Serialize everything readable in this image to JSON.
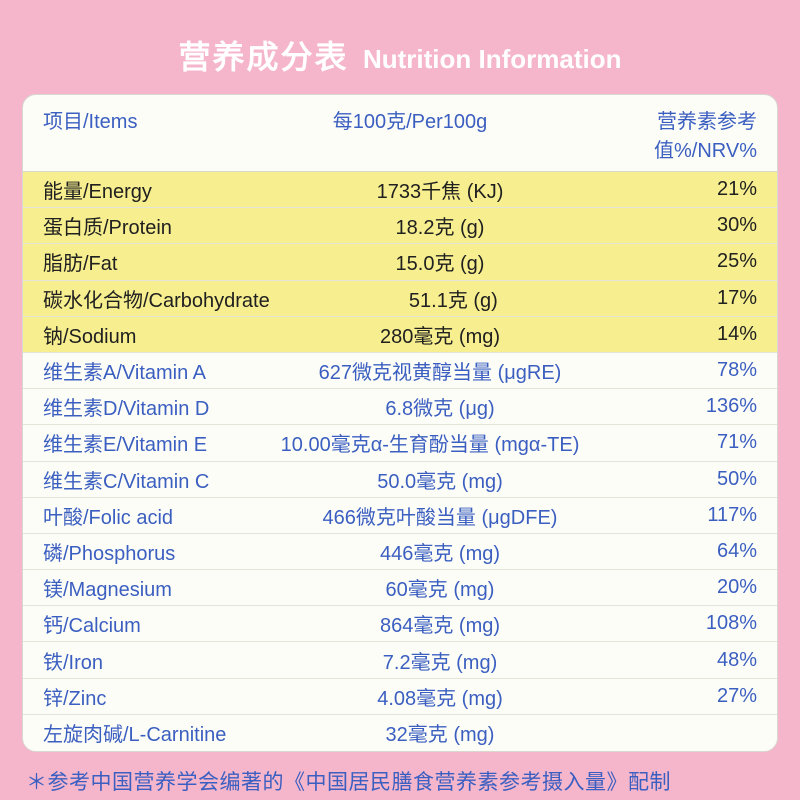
{
  "title": {
    "cn": "营养成分表",
    "en": "Nutrition Information"
  },
  "headers": {
    "item": "项目/Items",
    "per100g": "每100克/Per100g",
    "nrv": "营养素参考值%/NRV%"
  },
  "rows": [
    {
      "name": "能量/Energy",
      "value": "1733千焦 (KJ)",
      "nrv": "21%",
      "hl": true
    },
    {
      "name": "蛋白质/Protein",
      "value": "18.2克 (g)",
      "nrv": "30%",
      "hl": true
    },
    {
      "name": "脂肪/Fat",
      "value": "15.0克 (g)",
      "nrv": "25%",
      "hl": true
    },
    {
      "name": "碳水化合物/Carbohydrate",
      "value": "51.1克 (g)",
      "nrv": "17%",
      "hl": true
    },
    {
      "name": "钠/Sodium",
      "value": "280毫克 (mg)",
      "nrv": "14%",
      "hl": true
    },
    {
      "name": "维生素A/Vitamin A",
      "value": "627微克视黄醇当量 (μgRE)",
      "nrv": "78%",
      "hl": false
    },
    {
      "name": "维生素D/Vitamin D",
      "value": "6.8微克 (μg)",
      "nrv": "136%",
      "hl": false
    },
    {
      "name": "维生素E/Vitamin E",
      "value": "10.00毫克α-生育酚当量 (mgα-TE)",
      "nrv": "71%",
      "hl": false,
      "tight": true
    },
    {
      "name": "维生素C/Vitamin C",
      "value": "50.0毫克 (mg)",
      "nrv": "50%",
      "hl": false
    },
    {
      "name": "叶酸/Folic acid",
      "value": "466微克叶酸当量 (μgDFE)",
      "nrv": "117%",
      "hl": false
    },
    {
      "name": "磷/Phosphorus",
      "value": "446毫克 (mg)",
      "nrv": "64%",
      "hl": false
    },
    {
      "name": "镁/Magnesium",
      "value": "60毫克 (mg)",
      "nrv": "20%",
      "hl": false
    },
    {
      "name": "钙/Calcium",
      "value": "864毫克 (mg)",
      "nrv": "108%",
      "hl": false
    },
    {
      "name": "铁/Iron",
      "value": "7.2毫克 (mg)",
      "nrv": "48%",
      "hl": false
    },
    {
      "name": "锌/Zinc",
      "value": "4.08毫克 (mg)",
      "nrv": "27%",
      "hl": false
    },
    {
      "name": "左旋肉碱/L-Carnitine",
      "value": "32毫克 (mg)",
      "nrv": "",
      "hl": false
    }
  ],
  "footnote": "＊参考中国营养学会编著的《中国居民膳食营养素参考摄入量》配制",
  "colors": {
    "page_bg": "#f5b6cc",
    "panel_bg": "#fdfdf8",
    "highlight_bg": "#f7ef8f",
    "text_blue": "#3b5fc0",
    "text_dark": "#202020",
    "title_white": "#ffffff",
    "row_border": "#e4e4d8"
  }
}
